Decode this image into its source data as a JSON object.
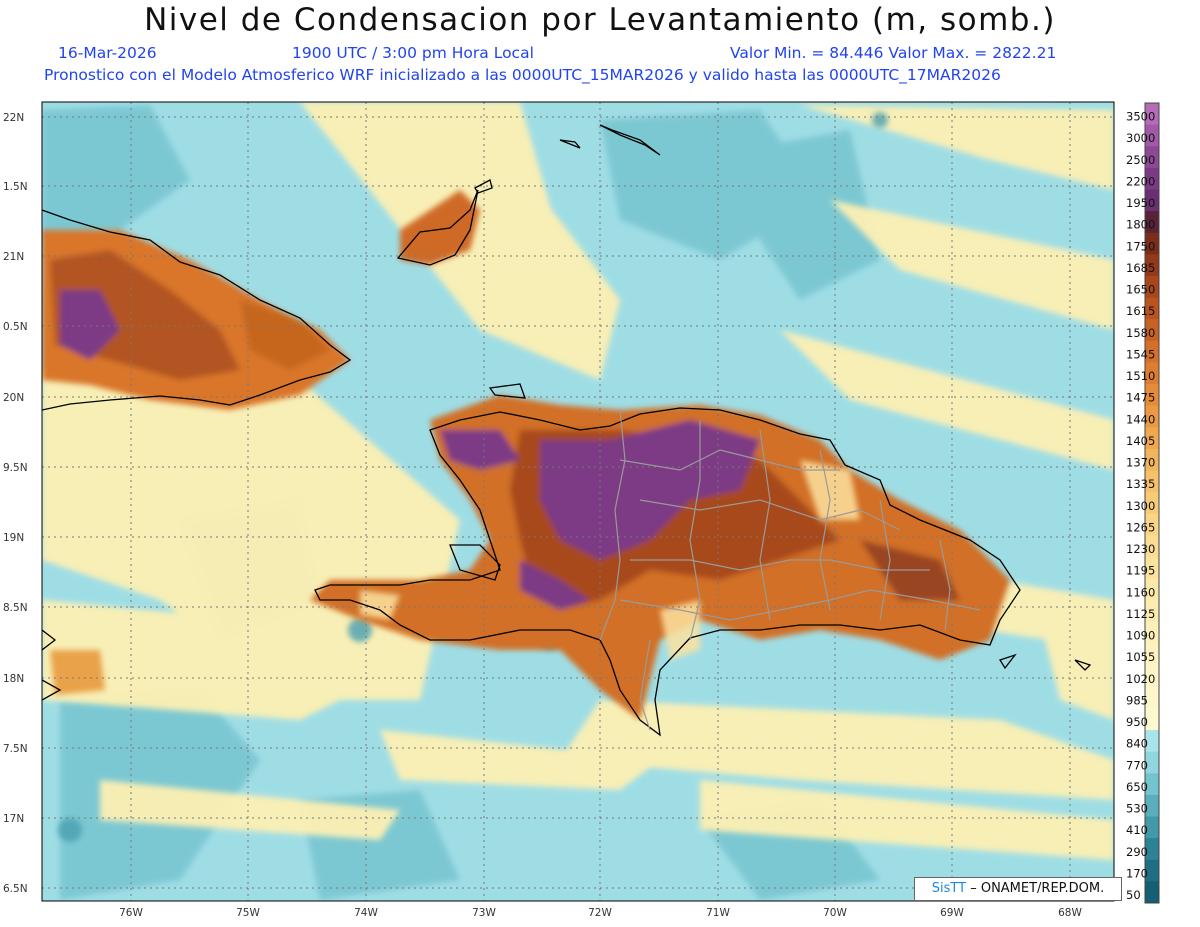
{
  "header": {
    "title": "Nivel de Condensacion por Levantamiento (m, somb.)",
    "date": "16-Mar-2026",
    "time": "1900 UTC / 3:00 pm Hora Local",
    "min_max": "Valor Min. = 84.446   Valor Max. = 2822.21",
    "forecast_line": "Pronostico con el Modelo Atmosferico WRF inicializado a las 0000UTC_15MAR2026 y valido hasta las  0000UTC_17MAR2026"
  },
  "axes": {
    "lat_labels": [
      "22N",
      "1.5N",
      "21N",
      "0.5N",
      "20N",
      "9.5N",
      "19N",
      "8.5N",
      "18N",
      "7.5N",
      "17N",
      "6.5N"
    ],
    "lon_labels": [
      "76W",
      "75W",
      "74W",
      "73W",
      "72W",
      "71W",
      "70W",
      "69W",
      "68W"
    ]
  },
  "colorbar": {
    "labels": [
      "3500",
      "3000",
      "2500",
      "2200",
      "1950",
      "1800",
      "1750",
      "1685",
      "1650",
      "1615",
      "1580",
      "1545",
      "1510",
      "1475",
      "1440",
      "1405",
      "1370",
      "1335",
      "1300",
      "1265",
      "1230",
      "1195",
      "1160",
      "1125",
      "1090",
      "1055",
      "1020",
      "985",
      "950",
      "840",
      "770",
      "650",
      "530",
      "410",
      "290",
      "170",
      "50"
    ],
    "colors": [
      "#b56bb8",
      "#a25aa8",
      "#8e4896",
      "#7b3a84",
      "#6a2e72",
      "#5a2238",
      "#7a2d18",
      "#93391a",
      "#a8461c",
      "#b9531f",
      "#c96124",
      "#d56f2a",
      "#de7d30",
      "#e68b38",
      "#ec9a42",
      "#f0a84e",
      "#f3b55b",
      "#f6c169",
      "#f8cc77",
      "#f9d585",
      "#fadd92",
      "#fbe39e",
      "#fce8a8",
      "#fdecb1",
      "#fdf0b9",
      "#fef3c0",
      "#fef5c6",
      "#fef7cc",
      "#fef8d0",
      "#a9e4ea",
      "#8fd6df",
      "#74c4d0",
      "#5aaebd",
      "#4398aa",
      "#2e8296",
      "#1f6e84",
      "#155e74"
    ]
  },
  "credit": {
    "logo": "SisTT",
    "text": "– ONAMET/REP.DOM."
  },
  "colors": {
    "ocean": "#9fdde5",
    "yellow": "#fdf0b4",
    "teal": "#5fb4c3",
    "brown": "#c6661f",
    "purple": "#7b3a84"
  }
}
